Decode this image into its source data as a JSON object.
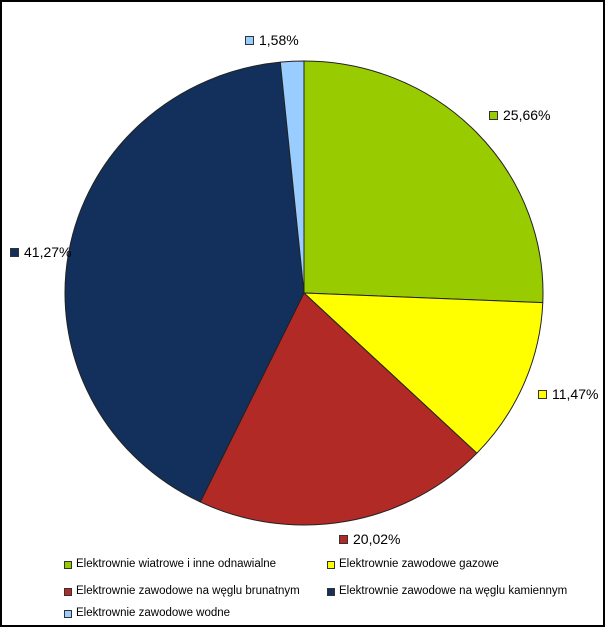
{
  "chart_data": {
    "type": "pie",
    "title": "",
    "direction": "clockwise",
    "start_angle_deg": 0,
    "legend_position": "bottom",
    "slice_border_color": "#222222",
    "background_color": "#ffffff",
    "slices": [
      {
        "label": "Elektrownie wiatrowe i inne odnawialne",
        "value": 25.66,
        "display": "25,66%",
        "color": "#99CC00"
      },
      {
        "label": "Elektrownie zawodowe gazowe",
        "value": 11.47,
        "display": "11,47%",
        "color": "#FFFF00"
      },
      {
        "label": "Elektrownie zawodowe na węglu brunatnym",
        "value": 20.02,
        "display": "20,02%",
        "color": "#B22A26"
      },
      {
        "label": "Elektrownie zawodowe na węglu kamiennym",
        "value": 41.27,
        "display": "41,27%",
        "color": "#12305B"
      },
      {
        "label": "Elektrownie zawodowe wodne",
        "value": 1.58,
        "display": "1,58%",
        "color": "#99CCFF"
      }
    ]
  }
}
